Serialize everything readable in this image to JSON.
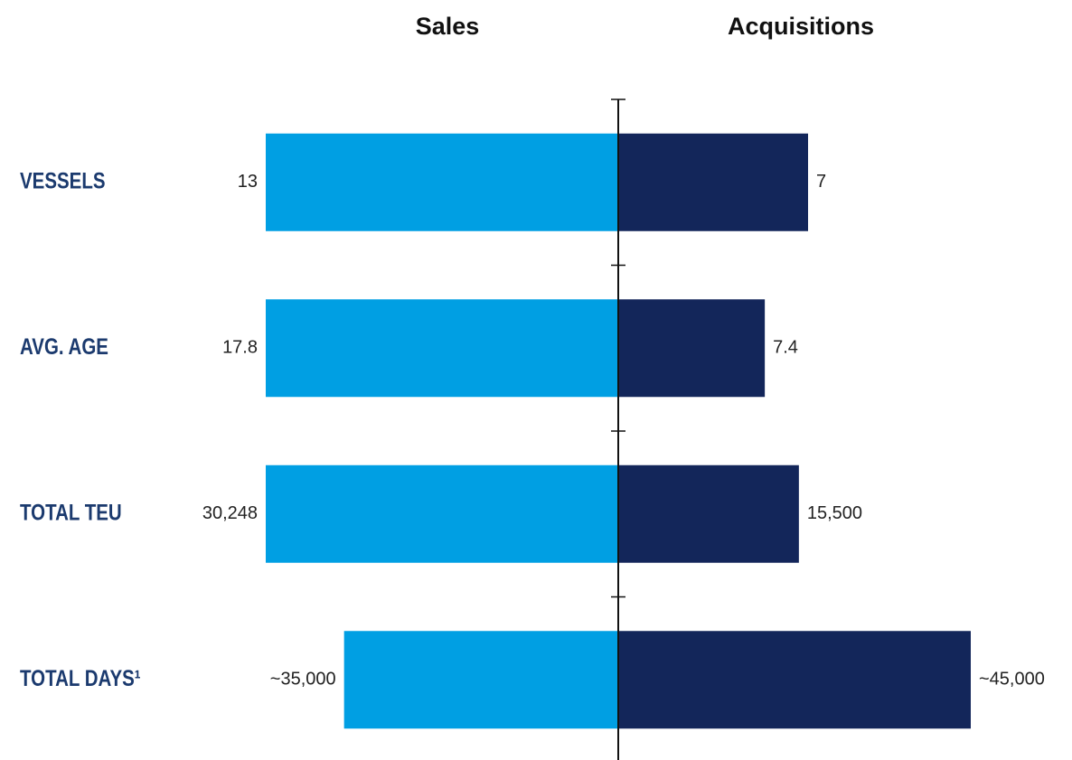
{
  "chart_data": {
    "type": "bar",
    "orientation": "butterfly",
    "categories": [
      "VESSELS",
      "AVG. AGE",
      "TOTAL TEU",
      "TOTAL DAYS¹"
    ],
    "series": [
      {
        "name": "Sales",
        "color": "#009fe3",
        "values": [
          13,
          17.8,
          30248,
          35000
        ],
        "value_labels": [
          "13",
          "17.8",
          "30,248",
          "~35,000"
        ]
      },
      {
        "name": "Acquisitions",
        "color": "#13265a",
        "values": [
          7,
          7.4,
          15500,
          45000
        ],
        "value_labels": [
          "7",
          "7.4",
          "15,500",
          "~45,000"
        ]
      }
    ]
  }
}
